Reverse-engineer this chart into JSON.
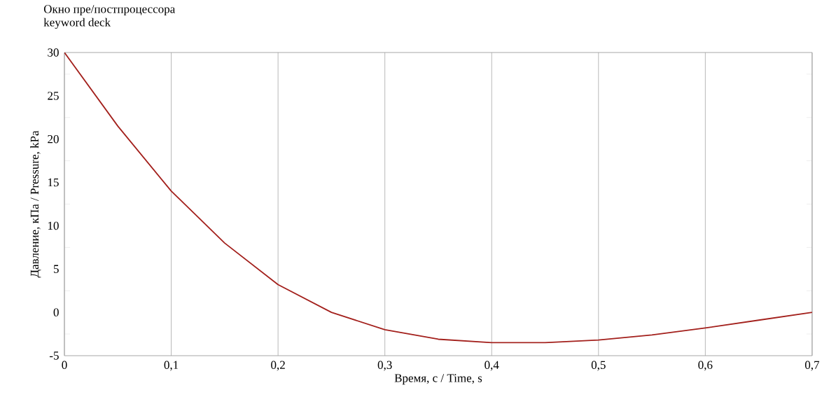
{
  "chart_data": {
    "type": "line",
    "title": "Окно пре/постпроцессора",
    "subtitle": "keyword deck",
    "xlabel": "Время, с / Time, s",
    "ylabel": "Давление, кПа / Pressure, kPa",
    "x": [
      0,
      0.05,
      0.1,
      0.15,
      0.2,
      0.25,
      0.3,
      0.35,
      0.4,
      0.45,
      0.5,
      0.55,
      0.6,
      0.65,
      0.7
    ],
    "series": [
      {
        "color": "#a3201c",
        "values": [
          30,
          21.5,
          14,
          8,
          3.2,
          0,
          -2,
          -3.1,
          -3.5,
          -3.5,
          -3.2,
          -2.6,
          -1.8,
          -0.9,
          0
        ]
      }
    ],
    "xlim": [
      0,
      0.7
    ],
    "ylim": [
      -5,
      30
    ],
    "xticks": [
      0,
      {
        "value": 0.1,
        "label": "0,1"
      },
      {
        "value": 0.2,
        "label": "0,2"
      },
      {
        "value": 0.3,
        "label": "0,3"
      },
      {
        "value": 0.4,
        "label": "0,4"
      },
      {
        "value": 0.5,
        "label": "0,5"
      },
      {
        "value": 0.6,
        "label": "0,6"
      },
      {
        "value": 0.7,
        "label": "0,7"
      }
    ],
    "yticks": [
      -5,
      0,
      5,
      10,
      15,
      20,
      25,
      30
    ],
    "grid": "x",
    "marker": "none",
    "line_style": "solid"
  }
}
